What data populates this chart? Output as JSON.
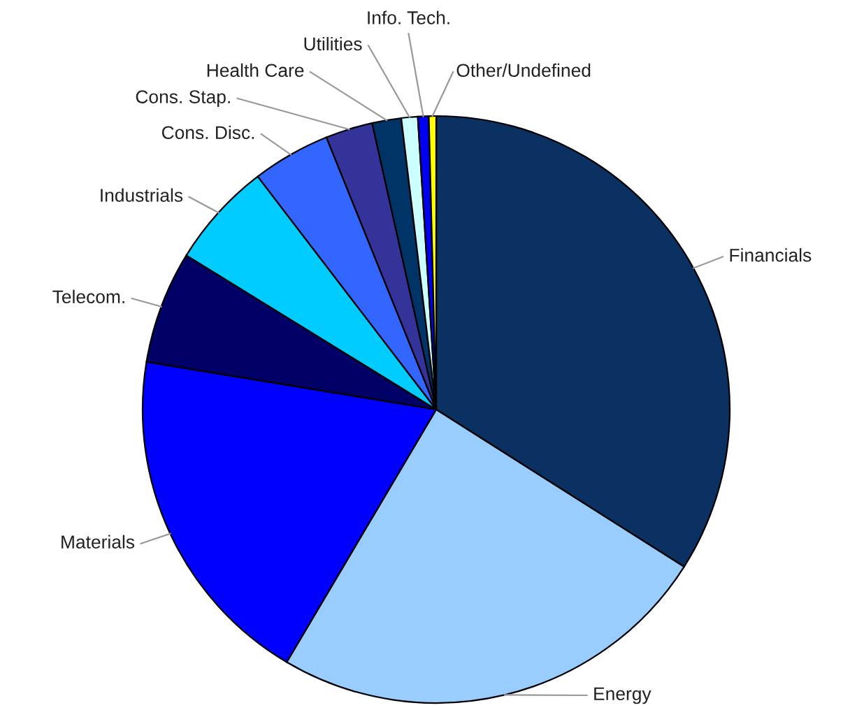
{
  "chart_data": {
    "type": "pie",
    "categories": [
      "Financials",
      "Energy",
      "Materials",
      "Telecom.",
      "Industrials",
      "Cons. Disc.",
      "Cons. Stap.",
      "Health Care",
      "Utilities",
      "Info. Tech.",
      "Other/Undefined"
    ],
    "values": [
      34.0,
      24.5,
      19.1,
      6.2,
      5.8,
      4.3,
      2.6,
      1.6,
      0.9,
      0.6,
      0.4
    ],
    "colors": [
      "#0b3163",
      "#99ccff",
      "#0000ff",
      "#000066",
      "#00ccff",
      "#3366ff",
      "#333399",
      "#003366",
      "#ccffff",
      "#0000ee",
      "#ffff00"
    ],
    "legend": false
  }
}
